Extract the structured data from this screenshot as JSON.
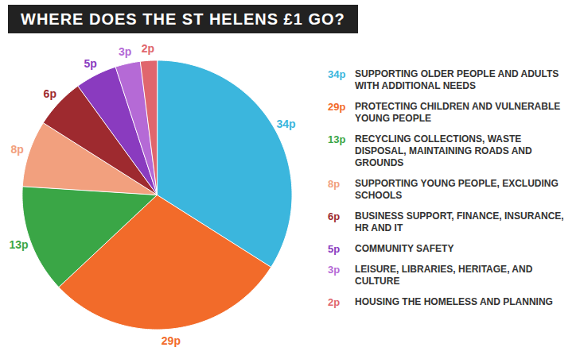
{
  "chart_data": {
    "type": "pie",
    "title": "WHERE DOES THE ST HELENS £1 GO?",
    "categories": [
      "SUPPORTING OLDER PEOPLE AND ADULTS WITH ADDITIONAL NEEDS",
      "PROTECTING CHILDREN AND VULNERABLE YOUNG PEOPLE",
      "RECYCLING COLLECTIONS, WASTE DISPOSAL, MAINTAINING ROADS AND GROUNDS",
      "SUPPORTING YOUNG PEOPLE, EXCLUDING SCHOOLS",
      "BUSINESS SUPPORT, FINANCE, INSURANCE, HR AND IT",
      "COMMUNITY SAFETY",
      "LEISURE, LIBRARIES, HERITAGE, AND CULTURE",
      "HOUSING THE HOMELESS AND PLANNING"
    ],
    "values": [
      34,
      29,
      13,
      8,
      6,
      5,
      3,
      2
    ],
    "value_labels": [
      "34p",
      "29p",
      "13p",
      "8p",
      "6p",
      "5p",
      "3p",
      "2p"
    ],
    "colors": [
      "#3bb6dd",
      "#f26b2a",
      "#3aa646",
      "#f2a07e",
      "#9e2a2f",
      "#8a3bbf",
      "#b56ad6",
      "#e0666d"
    ],
    "data_labels": true,
    "legend": "right"
  }
}
